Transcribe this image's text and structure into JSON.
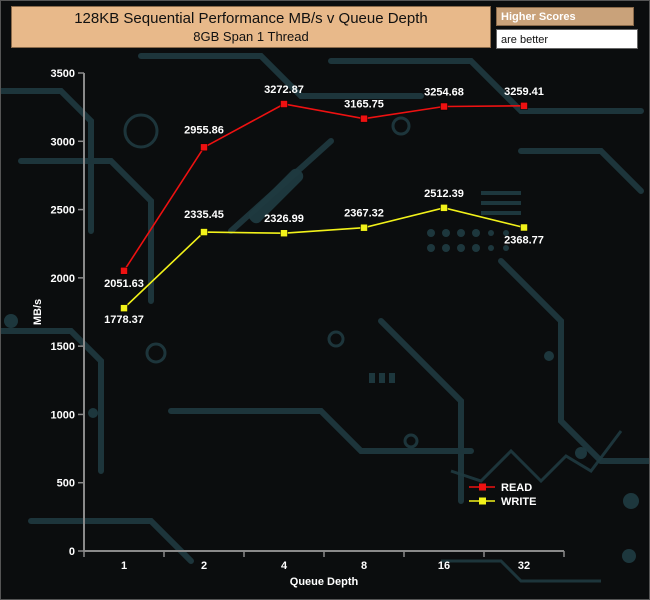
{
  "header": {
    "title": "128KB Sequential Performance MB/s v Queue Depth",
    "subtitle": "8GB Span 1 Thread"
  },
  "note": {
    "line1": "Higher Scores",
    "line2": "are better"
  },
  "colors": {
    "read": "#ee1111",
    "write": "#f2f21a",
    "axis": "#8a8a8a",
    "circuit": "#1f3a40"
  },
  "chart_data": {
    "type": "line",
    "categories": [
      "1",
      "2",
      "4",
      "8",
      "16",
      "32"
    ],
    "series": [
      {
        "name": "READ",
        "values": [
          2051.63,
          2955.86,
          3272.87,
          3165.75,
          3254.68,
          3259.41
        ]
      },
      {
        "name": "WRITE",
        "values": [
          1778.37,
          2335.45,
          2326.99,
          2367.32,
          2512.39,
          2368.77
        ]
      }
    ],
    "xlabel": "Queue Depth",
    "ylabel": "MB/s",
    "ylim": [
      0,
      3500
    ],
    "yticks": [
      0,
      500,
      1000,
      1500,
      2000,
      2500,
      3000,
      3500
    ],
    "grid": false,
    "legend_position": "bottom-right"
  }
}
